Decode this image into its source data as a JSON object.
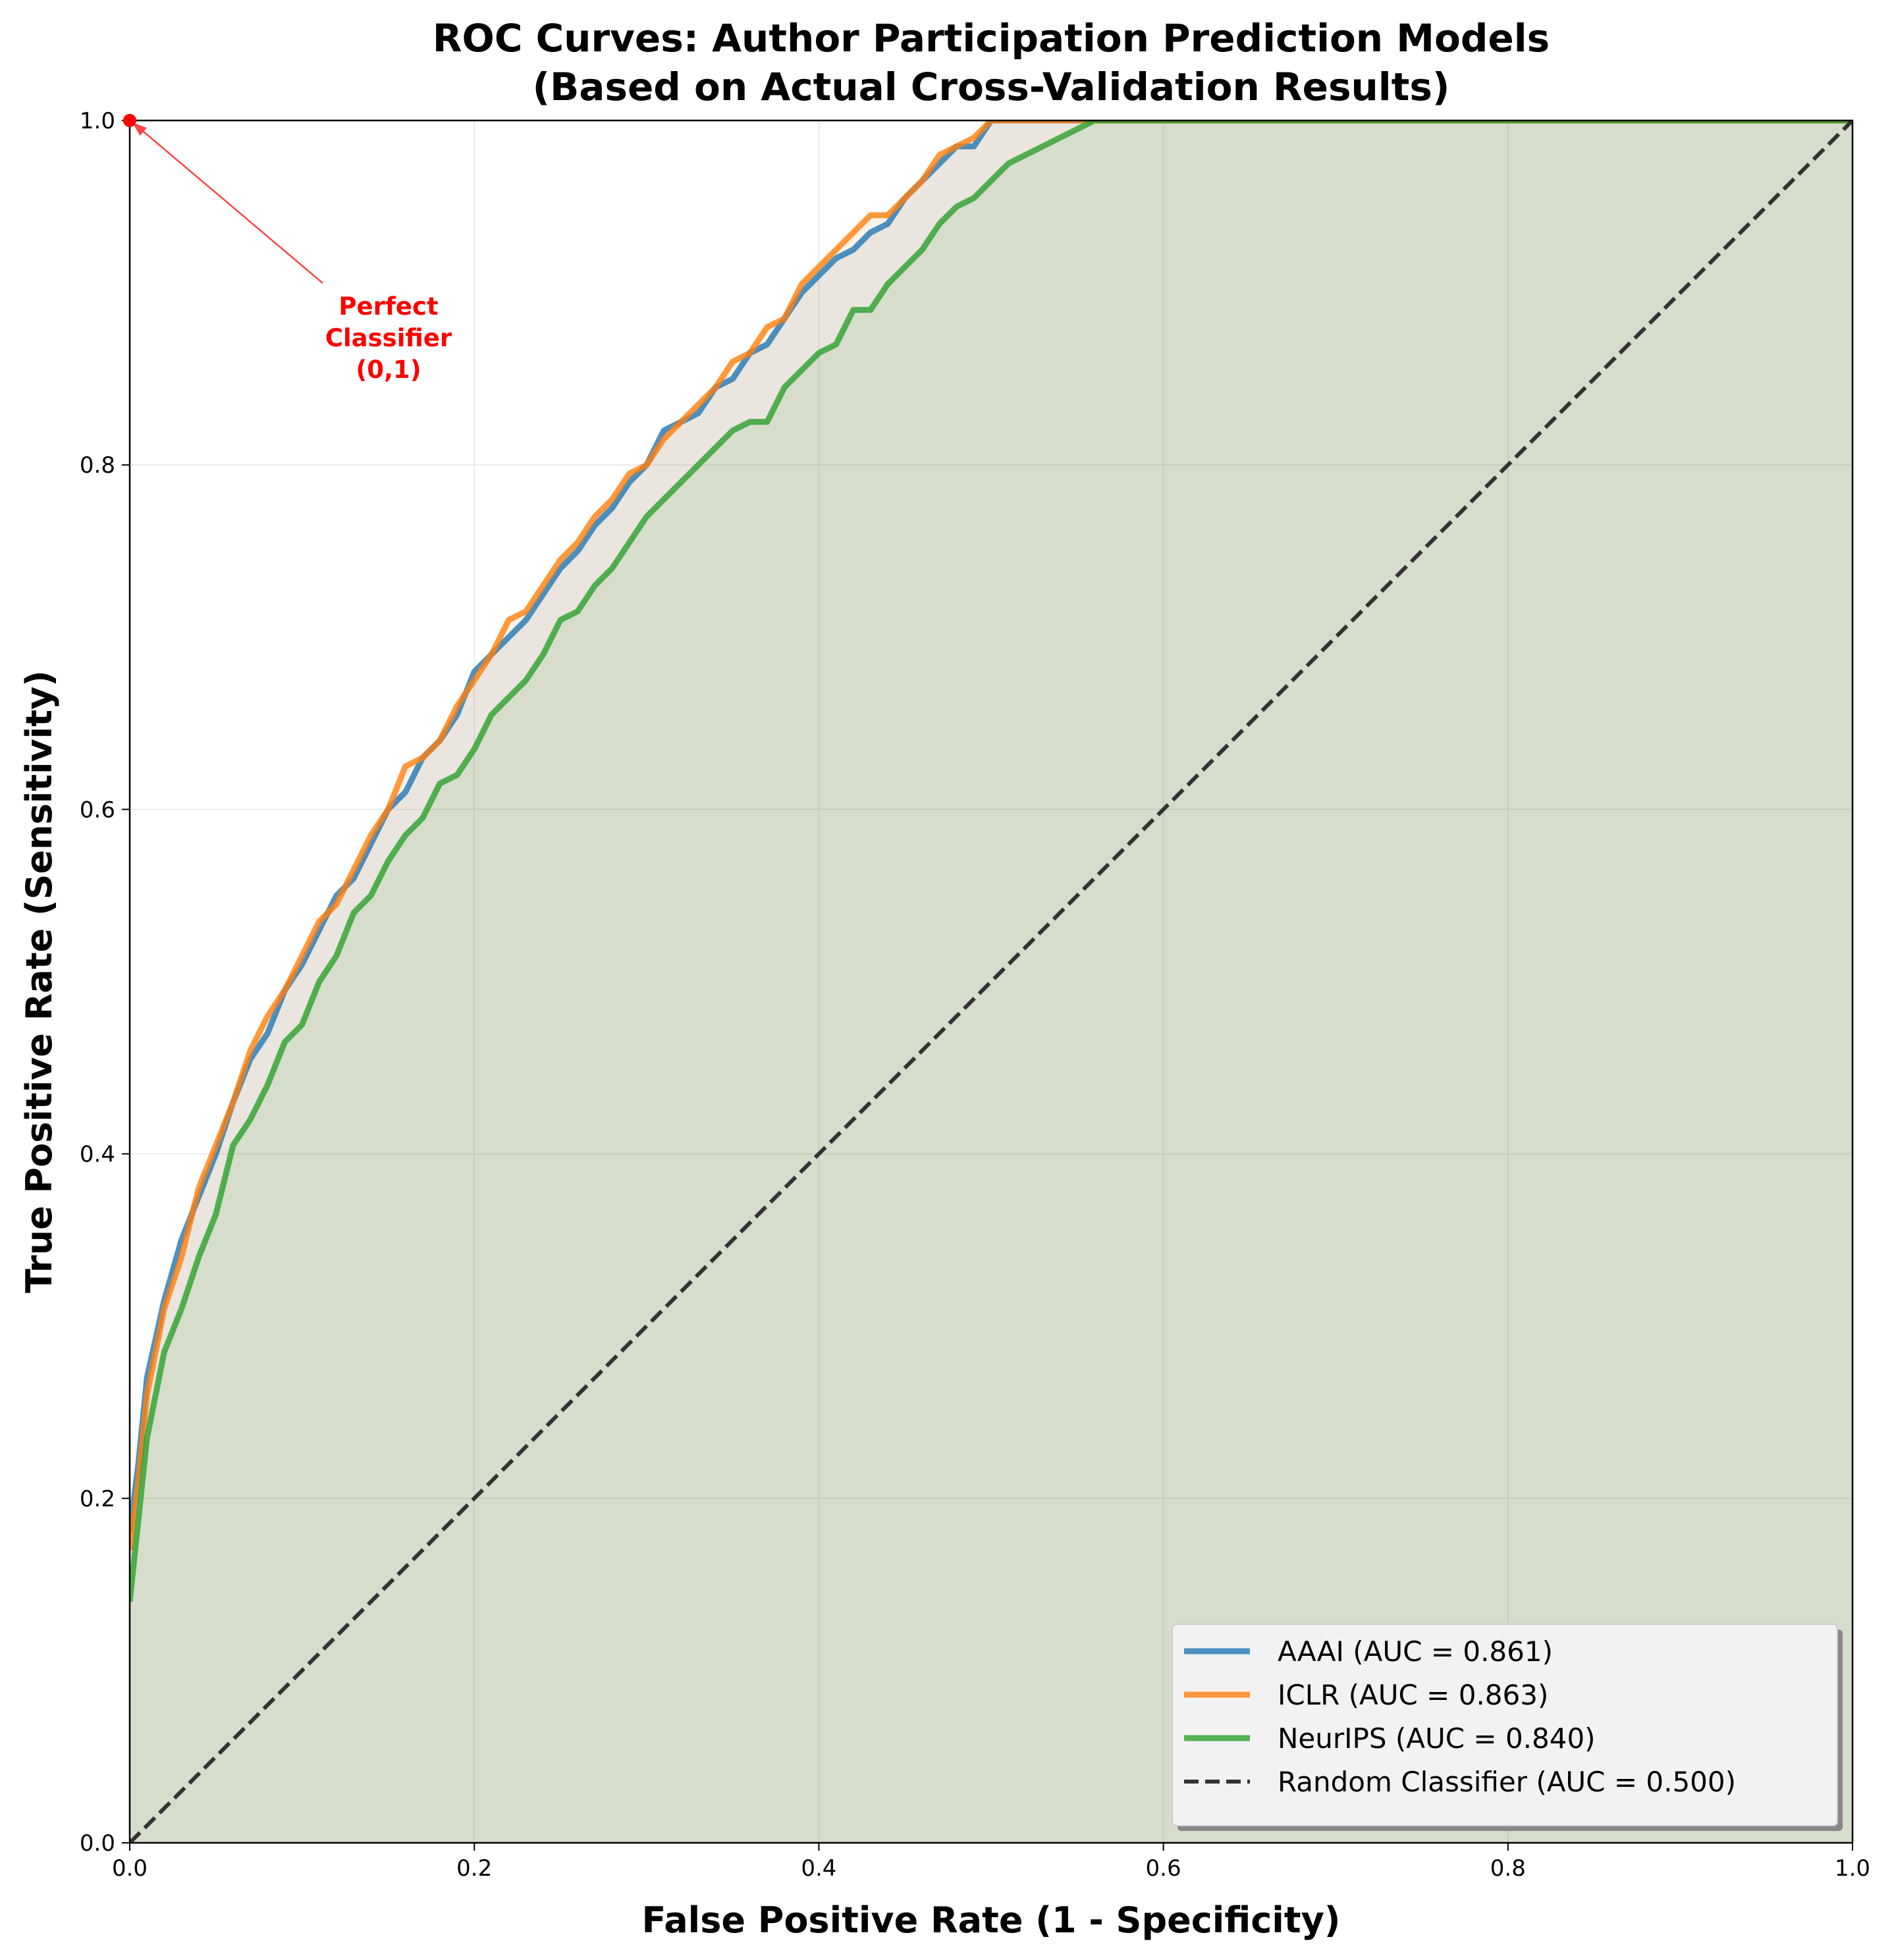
{
  "colors": {
    "aaai": "#1f77b4",
    "iclr": "#ff7f0e",
    "neurips": "#2ca02c",
    "random": "#333333",
    "annotation": "#ff0000",
    "grid": "#e6e6e6"
  },
  "annotation": {
    "lines": [
      "Perfect",
      "Classifier",
      "(0,1)"
    ],
    "point": [
      0.0,
      1.0
    ]
  },
  "chart_data": {
    "type": "line",
    "title": [
      "ROC Curves: Author Participation Prediction Models",
      "(Based on Actual Cross-Validation Results)"
    ],
    "xlabel": "False Positive Rate (1 - Specificity)",
    "ylabel": "True Positive Rate (Sensitivity)",
    "xlim": [
      0,
      1
    ],
    "ylim": [
      0,
      1
    ],
    "xticks": [
      "0.0",
      "0.2",
      "0.4",
      "0.6",
      "0.8",
      "1.0"
    ],
    "yticks": [
      "0.0",
      "0.2",
      "0.4",
      "0.6",
      "0.8",
      "1.0"
    ],
    "grid": true,
    "legend_position": "lower-right",
    "legend_labels": [
      "AAAI (AUC = 0.861)",
      "ICLR (AUC = 0.863)",
      "NeurIPS (AUC = 0.840)",
      "Random Classifier (AUC = 0.500)"
    ],
    "series": [
      {
        "name": "AAAI",
        "auc": 0.861,
        "color": "aaai",
        "x": [
          0,
          0.005,
          0.01,
          0.02,
          0.03,
          0.04,
          0.05,
          0.06,
          0.07,
          0.08,
          0.09,
          0.1,
          0.11,
          0.12,
          0.13,
          0.14,
          0.15,
          0.16,
          0.17,
          0.18,
          0.19,
          0.2,
          0.21,
          0.22,
          0.23,
          0.24,
          0.25,
          0.26,
          0.27,
          0.28,
          0.29,
          0.3,
          0.31,
          0.32,
          0.33,
          0.34,
          0.35,
          0.36,
          0.37,
          0.38,
          0.39,
          0.4,
          0.41,
          0.42,
          0.43,
          0.44,
          0.45,
          0.46,
          0.47,
          0.48,
          0.49,
          0.5,
          0.51,
          1.0
        ],
        "y": [
          0.18,
          0.22,
          0.27,
          0.315,
          0.35,
          0.375,
          0.4,
          0.43,
          0.455,
          0.47,
          0.495,
          0.51,
          0.53,
          0.55,
          0.56,
          0.58,
          0.6,
          0.61,
          0.63,
          0.64,
          0.655,
          0.68,
          0.69,
          0.7,
          0.71,
          0.725,
          0.74,
          0.75,
          0.765,
          0.775,
          0.79,
          0.8,
          0.82,
          0.825,
          0.83,
          0.845,
          0.85,
          0.865,
          0.87,
          0.885,
          0.9,
          0.91,
          0.92,
          0.925,
          0.935,
          0.94,
          0.955,
          0.965,
          0.975,
          0.985,
          0.985,
          1.0,
          1.0,
          1.0
        ]
      },
      {
        "name": "ICLR",
        "auc": 0.863,
        "color": "iclr",
        "x": [
          0,
          0.005,
          0.01,
          0.02,
          0.03,
          0.04,
          0.05,
          0.06,
          0.07,
          0.08,
          0.09,
          0.1,
          0.11,
          0.12,
          0.13,
          0.14,
          0.15,
          0.16,
          0.17,
          0.18,
          0.19,
          0.2,
          0.21,
          0.22,
          0.23,
          0.24,
          0.25,
          0.26,
          0.27,
          0.28,
          0.29,
          0.3,
          0.31,
          0.32,
          0.33,
          0.34,
          0.35,
          0.36,
          0.37,
          0.38,
          0.39,
          0.4,
          0.41,
          0.42,
          0.43,
          0.44,
          0.45,
          0.46,
          0.47,
          0.48,
          0.49,
          0.5,
          0.51,
          1.0
        ],
        "y": [
          0.17,
          0.21,
          0.26,
          0.31,
          0.34,
          0.38,
          0.405,
          0.43,
          0.46,
          0.48,
          0.495,
          0.515,
          0.535,
          0.545,
          0.565,
          0.585,
          0.6,
          0.625,
          0.63,
          0.64,
          0.66,
          0.675,
          0.69,
          0.71,
          0.715,
          0.73,
          0.745,
          0.755,
          0.77,
          0.78,
          0.795,
          0.8,
          0.815,
          0.825,
          0.835,
          0.845,
          0.86,
          0.865,
          0.88,
          0.885,
          0.905,
          0.915,
          0.925,
          0.935,
          0.945,
          0.945,
          0.955,
          0.965,
          0.98,
          0.985,
          0.99,
          1.0,
          1.0,
          1.0
        ]
      },
      {
        "name": "NeurIPS",
        "auc": 0.84,
        "color": "neurips",
        "x": [
          0,
          0.01,
          0.02,
          0.03,
          0.04,
          0.05,
          0.06,
          0.07,
          0.08,
          0.09,
          0.1,
          0.11,
          0.12,
          0.13,
          0.14,
          0.15,
          0.16,
          0.17,
          0.18,
          0.19,
          0.2,
          0.21,
          0.22,
          0.23,
          0.24,
          0.25,
          0.26,
          0.27,
          0.28,
          0.29,
          0.3,
          0.31,
          0.32,
          0.33,
          0.34,
          0.35,
          0.36,
          0.37,
          0.38,
          0.39,
          0.4,
          0.41,
          0.42,
          0.43,
          0.44,
          0.45,
          0.46,
          0.47,
          0.48,
          0.49,
          0.5,
          0.51,
          0.52,
          0.53,
          0.54,
          0.55,
          0.56,
          1.0
        ],
        "y": [
          0.14,
          0.235,
          0.285,
          0.31,
          0.34,
          0.365,
          0.405,
          0.42,
          0.44,
          0.465,
          0.475,
          0.5,
          0.515,
          0.54,
          0.55,
          0.57,
          0.585,
          0.595,
          0.615,
          0.62,
          0.635,
          0.655,
          0.665,
          0.675,
          0.69,
          0.71,
          0.715,
          0.73,
          0.74,
          0.755,
          0.77,
          0.78,
          0.79,
          0.8,
          0.81,
          0.82,
          0.825,
          0.825,
          0.845,
          0.855,
          0.865,
          0.87,
          0.89,
          0.89,
          0.905,
          0.915,
          0.925,
          0.94,
          0.95,
          0.955,
          0.965,
          0.975,
          0.98,
          0.985,
          0.99,
          0.995,
          1.0,
          1.0
        ]
      },
      {
        "name": "Random Classifier",
        "auc": 0.5,
        "color": "random",
        "dashed": true,
        "x": [
          0,
          1
        ],
        "y": [
          0,
          1
        ]
      }
    ]
  }
}
